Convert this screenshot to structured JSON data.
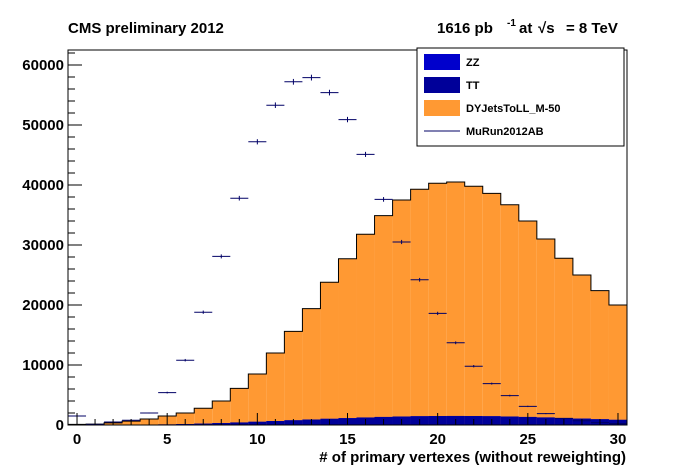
{
  "header": {
    "left": "CMS preliminary 2012",
    "lumi_value": "1616 pb",
    "lumi_exp": "-1",
    "lumi_at": "at",
    "lumi_sqrt": "√s",
    "lumi_energy": "= 8 TeV"
  },
  "colors": {
    "zz": "#0000cc",
    "tt": "#000099",
    "dy": "#ff9933",
    "data": "#000066"
  },
  "chart_data": {
    "type": "bar",
    "title": "",
    "xlabel": "# of primary vertexes (without reweighting)",
    "ylabel": "",
    "xlim": [
      -0.5,
      30.5
    ],
    "ylim": [
      0,
      62500
    ],
    "bin_width": 1,
    "x_ticks": [
      0,
      5,
      10,
      15,
      20,
      25,
      30
    ],
    "y_ticks": [
      0,
      10000,
      20000,
      30000,
      40000,
      50000,
      60000
    ],
    "x_tick_labels": [
      "0",
      "5",
      "10",
      "15",
      "20",
      "25",
      "30"
    ],
    "y_tick_labels": [
      "0",
      "10000",
      "20000",
      "30000",
      "40000",
      "50000",
      "60000"
    ],
    "legend": [
      {
        "key": "zz",
        "label": "ZZ",
        "style": "fill"
      },
      {
        "key": "tt",
        "label": "TT",
        "style": "fill"
      },
      {
        "key": "dy",
        "label": "DYJetsToLL_M-50",
        "style": "fill"
      },
      {
        "key": "data",
        "label": "MuRun2012AB",
        "style": "line"
      }
    ],
    "legend_position": "top-right",
    "bin_centers": [
      0,
      1,
      2,
      3,
      4,
      5,
      6,
      7,
      8,
      9,
      10,
      11,
      12,
      13,
      14,
      15,
      16,
      17,
      18,
      19,
      20,
      21,
      22,
      23,
      24,
      25,
      26,
      27,
      28,
      29,
      30
    ],
    "stack": [
      {
        "name": "TT",
        "key": "tt",
        "values": [
          0,
          0,
          10,
          30,
          60,
          100,
          160,
          230,
          320,
          420,
          530,
          650,
          780,
          900,
          1020,
          1130,
          1240,
          1330,
          1400,
          1450,
          1480,
          1490,
          1480,
          1450,
          1400,
          1330,
          1250,
          1150,
          1050,
          950,
          850
        ]
      },
      {
        "name": "ZZ",
        "key": "zz",
        "values": [
          0,
          0,
          0,
          0,
          0,
          0,
          0,
          0,
          0,
          10,
          10,
          10,
          10,
          20,
          20,
          20,
          20,
          20,
          20,
          20,
          20,
          20,
          20,
          20,
          20,
          20,
          20,
          20,
          20,
          20,
          20
        ]
      },
      {
        "name": "DYJetsToLL_M-50",
        "key": "dy",
        "total": [
          100,
          150,
          350,
          650,
          1000,
          1500,
          2000,
          2800,
          4000,
          6100,
          8500,
          12000,
          15600,
          19400,
          23800,
          27700,
          31800,
          34900,
          37500,
          39300,
          40300,
          40500,
          39800,
          38600,
          36700,
          34000,
          31000,
          27800,
          25000,
          22400,
          20000
        ]
      }
    ],
    "data": {
      "name": "MuRun2012AB",
      "key": "data",
      "values": [
        1500,
        100,
        500,
        800,
        2000,
        5400,
        10800,
        18800,
        28100,
        37800,
        47200,
        53300,
        57200,
        57900,
        55400,
        50900,
        45100,
        37600,
        30500,
        24200,
        18600,
        13700,
        9800,
        6900,
        4900,
        3100,
        1900,
        1100,
        700,
        400,
        250
      ]
    }
  }
}
